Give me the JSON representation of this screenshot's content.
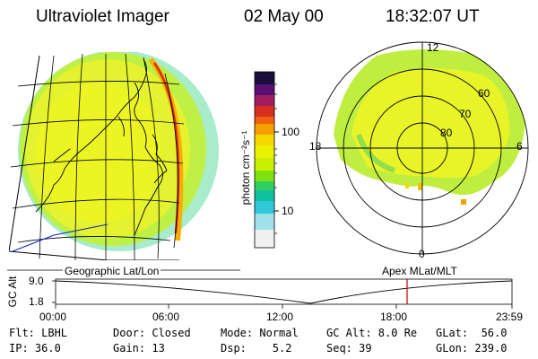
{
  "header": {
    "title": "Ultraviolet Imager",
    "date": "02 May 00",
    "time": "18:32:07 UT"
  },
  "colorbar": {
    "unit_label": "photon cm⁻²s⁻¹",
    "ticks": [
      "100",
      "10"
    ],
    "colors": [
      "#1a0f3a",
      "#5a1070",
      "#a01e60",
      "#d83020",
      "#f06010",
      "#f5a000",
      "#f5d800",
      "#eaf000",
      "#c8f000",
      "#80e010",
      "#30d060",
      "#10c0a0",
      "#30c8d8",
      "#a0e0e8",
      "#f0f0f0"
    ]
  },
  "polar": {
    "top": "12",
    "bottom": "0",
    "left": "18",
    "right": "6",
    "rings": [
      "60",
      "70",
      "80"
    ]
  },
  "section_labels": {
    "left": "Geographic Lat/Lon",
    "right": "Apex MLat/MLT"
  },
  "timeline": {
    "ylabel": "GC Alt",
    "y_top": "9.0",
    "y_bottom": "1.8",
    "x_ticks": [
      "00:00",
      "06:00",
      "12:00",
      "18:00",
      "23:59"
    ],
    "current_time_color": "#cc0000"
  },
  "info": {
    "flt": "Flt: LBHL",
    "ip": "IP: 36.0",
    "door": "Door: Closed",
    "gain": "Gain: 13",
    "mode": "Mode: Normal",
    "dsp": "Dsp:    5.2",
    "gcalt": "GC Alt: 8.0 Re",
    "seq": "Seq: 39",
    "glat": "GLat:  56.0",
    "glon": "GLon: 239.0"
  }
}
